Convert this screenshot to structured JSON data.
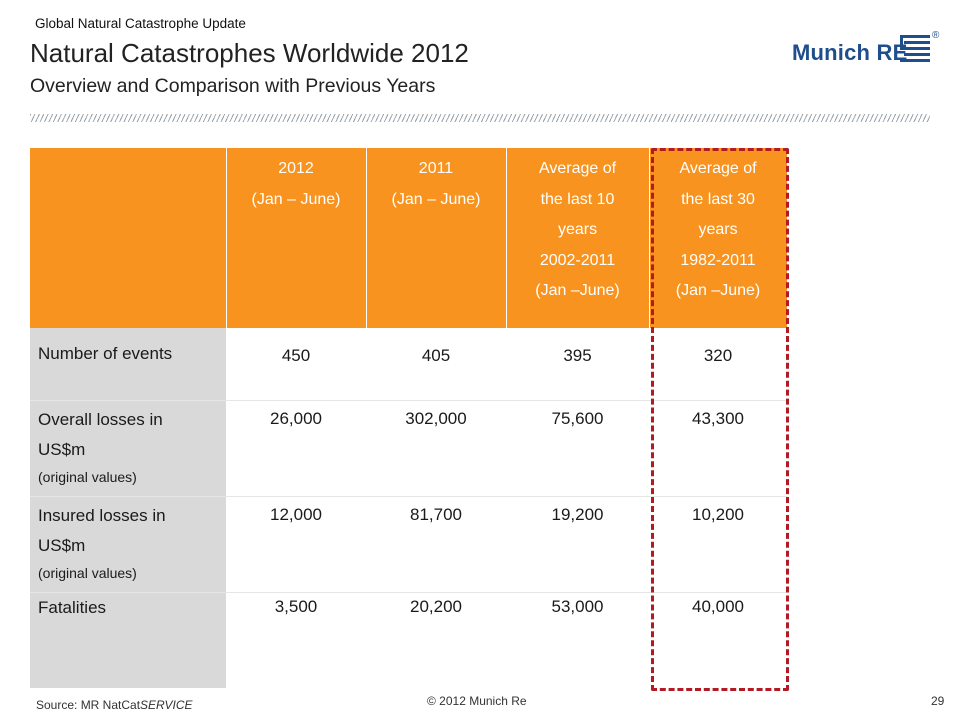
{
  "header": {
    "supertitle": "Global Natural Catastrophe Update",
    "title": "Natural Catastrophes Worldwide 2012",
    "subtitle": "Overview and Comparison with Previous Years"
  },
  "logo": {
    "text": "Munich RE",
    "registered": "®",
    "brand_color": "#1f4e8c"
  },
  "table": {
    "header_color": "#f7931e",
    "label_color": "#d9d9d9",
    "highlight_color": "#b01b24",
    "columns": [
      "2012\n(Jan – June)",
      "2011\n(Jan – June)",
      "Average of\nthe last 10\nyears\n2002-2011\n(Jan –June)",
      "Average of\nthe last 30\nyears\n1982-2011\n(Jan –June)"
    ],
    "rows": [
      {
        "label": "Number of events",
        "sub": "",
        "values": [
          "450",
          "405",
          "395",
          "320"
        ]
      },
      {
        "label": "Overall losses in US$m",
        "sub": "(original values)",
        "values": [
          "26,000",
          "302,000",
          "75,600",
          "43,300"
        ]
      },
      {
        "label": "Insured losses in US$m",
        "sub": "(original values)",
        "values": [
          "12,000",
          "81,700",
          "19,200",
          "10,200"
        ]
      },
      {
        "label": "Fatalities",
        "sub": "",
        "values": [
          "3,500",
          "20,200",
          "53,000",
          "40,000"
        ]
      }
    ]
  },
  "footer": {
    "source_prefix": "Source: MR NatCat",
    "source_italic": "SERVICE",
    "copyright": "© 2012 Munich Re",
    "page": "29"
  }
}
